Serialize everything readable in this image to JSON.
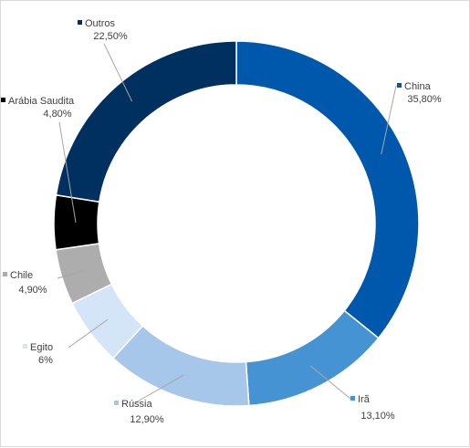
{
  "chart_data": {
    "type": "pie",
    "title": "",
    "donut": true,
    "legend": "none",
    "slices": [
      {
        "label": "China",
        "value": 35.8,
        "value_text": "35,80%",
        "color": "#0058AD"
      },
      {
        "label": "Irã",
        "value": 13.1,
        "value_text": "13,10%",
        "color": "#4593D2"
      },
      {
        "label": "Rússia",
        "value": 12.9,
        "value_text": "12,90%",
        "color": "#A6C6EA"
      },
      {
        "label": "Egito",
        "value": 6,
        "value_text": "6%",
        "color": "#D4E5F7"
      },
      {
        "label": "Chile",
        "value": 4.9,
        "value_text": "4,90%",
        "color": "#ADADAD"
      },
      {
        "label": "Arábia Saudita",
        "value": 4.8,
        "value_text": "4,80%",
        "color": "#000000"
      },
      {
        "label": "Outros",
        "value": 22.5,
        "value_text": "22,50%",
        "color": "#00305F"
      }
    ]
  }
}
